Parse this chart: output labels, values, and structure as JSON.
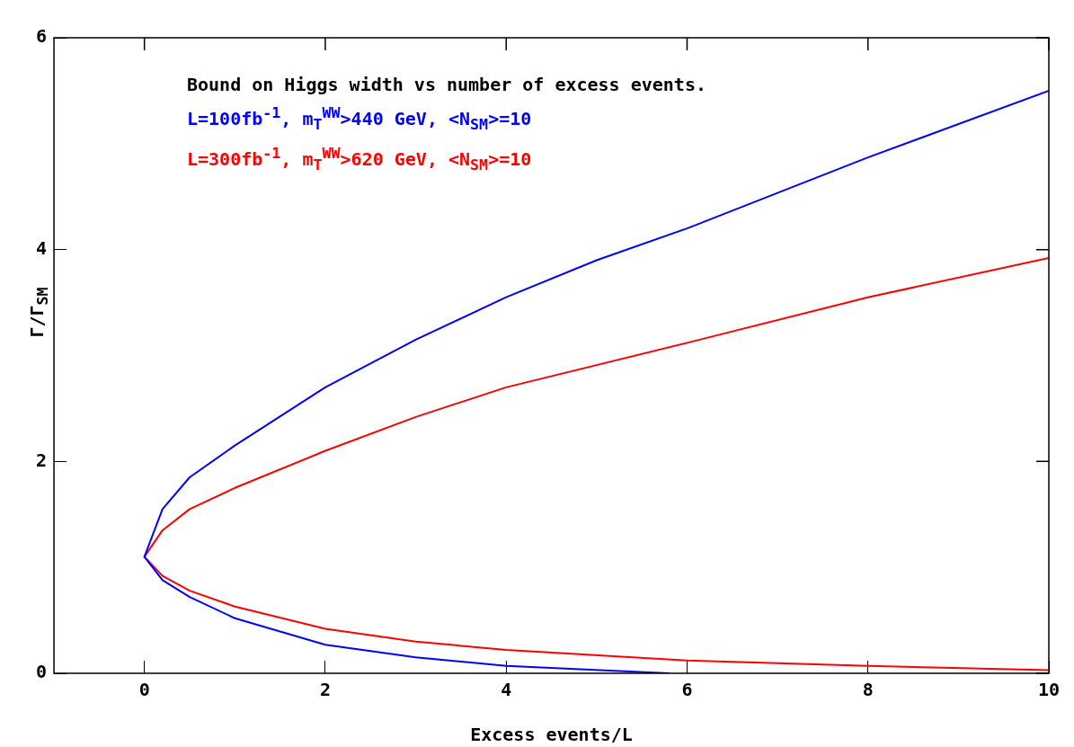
{
  "chart_data": {
    "type": "line",
    "xlabel": "Excess events/L",
    "ylabel": "Γ/Γ$_{SM}$",
    "annotations": [
      "Bound on Higgs width vs number of excess events."
    ],
    "xlim": [
      -1,
      10
    ],
    "ylim": [
      0,
      6
    ],
    "xticks": [
      0,
      2,
      4,
      6,
      8,
      10
    ],
    "yticks": [
      0,
      2,
      4,
      6
    ],
    "grid": false,
    "legend": "top left",
    "marker": "none",
    "line_style": "solid",
    "series": [
      {
        "name": "L=100fb$^{-1}$, m$_{T}$$^{WW}$>440 GeV, <N$_{SM}$>=10",
        "color": "#0000ff",
        "x": [
          5.8,
          4,
          3,
          2,
          1,
          0.5,
          0.2,
          0,
          0.2,
          0.5,
          1,
          2,
          3,
          4,
          5,
          6,
          8,
          10
        ],
        "values": [
          0,
          0.07,
          0.15,
          0.27,
          0.52,
          0.72,
          0.88,
          1.1,
          1.55,
          1.85,
          2.15,
          2.7,
          3.15,
          3.55,
          3.9,
          4.2,
          4.87,
          5.5
        ]
      },
      {
        "name": "L=300fb$^{-1}$, m$_{T}$$^{WW}$>620 GeV, <N$_{SM}$>=10",
        "color": "#ff0000",
        "x": [
          10,
          8,
          6,
          4,
          3,
          2,
          1,
          0.5,
          0.2,
          0,
          0.2,
          0.5,
          1,
          2,
          3,
          4,
          6,
          8,
          10
        ],
        "values": [
          0.03,
          0.07,
          0.12,
          0.22,
          0.3,
          0.42,
          0.63,
          0.78,
          0.92,
          1.1,
          1.35,
          1.55,
          1.75,
          2.1,
          2.42,
          2.7,
          3.12,
          3.55,
          3.92
        ]
      }
    ]
  }
}
